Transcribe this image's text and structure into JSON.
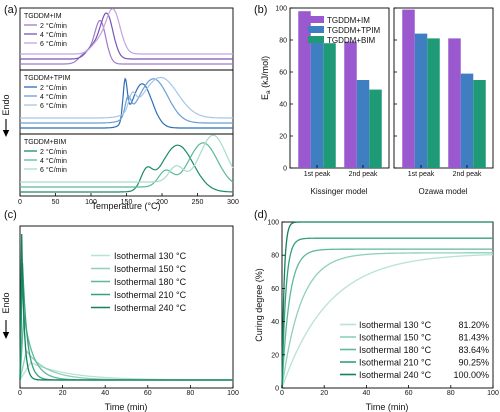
{
  "figure": {
    "panels": [
      {
        "label": "(a)"
      },
      {
        "label": "(b)"
      },
      {
        "label": "(c)"
      },
      {
        "label": "(d)"
      }
    ]
  },
  "chart_data": [
    {
      "id": "a",
      "type": "line",
      "xlabel": "Temperature (°C)",
      "ylabel": "Endo",
      "xlim": [
        0,
        300
      ],
      "xticks": [
        "0",
        "50",
        "100",
        "150",
        "200",
        "250",
        "300"
      ],
      "groups": [
        {
          "title": "TGDDM+IM",
          "series": [
            {
              "name": "2  °C/min",
              "color": "#a07bc8",
              "peaks": [
                [
                  93,
                  0.22,
                  9
                ],
                [
                  113,
                  0.85,
                  8
                ]
              ]
            },
            {
              "name": "4  °C/min",
              "color": "#7c52b5",
              "peaks": [
                [
                  102,
                  0.22,
                  9
                ],
                [
                  122,
                  0.9,
                  9
                ]
              ]
            },
            {
              "name": "6  °C/min",
              "color": "#c2a3e0",
              "peaks": [
                [
                  110,
                  0.22,
                  10
                ],
                [
                  131,
                  0.88,
                  10
                ]
              ]
            }
          ]
        },
        {
          "title": "TGDDM+TPIM",
          "series": [
            {
              "name": "2  °C/min",
              "color": "#2f6db5",
              "peaks": [
                [
                  148,
                  0.75,
                  3
                ],
                [
                  172,
                  0.85,
                  14
                ]
              ]
            },
            {
              "name": "4  °C/min",
              "color": "#6a9fd4",
              "peaks": [
                [
                  152,
                  0.35,
                  4
                ],
                [
                  188,
                  0.85,
                  20
                ]
              ]
            },
            {
              "name": "6  °C/min",
              "color": "#a7c6e6",
              "peaks": [
                [
                  158,
                  0.3,
                  5
                ],
                [
                  198,
                  0.78,
                  24
                ]
              ]
            }
          ]
        },
        {
          "title": "TGDDM+BIM",
          "series": [
            {
              "name": "2  °C/min",
              "color": "#1a8a6a",
              "peaks": [
                [
                  178,
                  0.35,
                  8
                ],
                [
                  222,
                  0.9,
                  22
                ]
              ]
            },
            {
              "name": "4  °C/min",
              "color": "#5cb89a",
              "peaks": [
                [
                  205,
                  0.3,
                  10
                ],
                [
                  258,
                  0.85,
                  20
                ]
              ]
            },
            {
              "name": "6  °C/min",
              "color": "#a9dcc8",
              "peaks": [
                [
                  220,
                  0.3,
                  10
                ],
                [
                  272,
                  0.9,
                  18
                ]
              ]
            }
          ]
        }
      ]
    },
    {
      "id": "b",
      "type": "bar",
      "ylabel": "E",
      "ylabel_sub": "a",
      "ylabel_unit": " (kJ/mol)",
      "ylim": [
        0,
        100
      ],
      "yticks": [
        "0",
        "20",
        "40",
        "60",
        "80",
        "100"
      ],
      "series": [
        {
          "name": "TGDDM+IM",
          "color": "#9b59d0"
        },
        {
          "name": "TGDDM+TPIM",
          "color": "#3f7fc1"
        },
        {
          "name": "TGDDM+BIM",
          "color": "#1f9a77"
        }
      ],
      "subplots": [
        {
          "xlabel": "Kissinger model",
          "categories": [
            "1st peak",
            "2nd peak"
          ],
          "values": [
            [
              98,
              81,
              78
            ],
            [
              79,
              55,
              49
            ]
          ]
        },
        {
          "xlabel": "Ozawa model",
          "categories": [
            "1st peak",
            "2nd peak"
          ],
          "values": [
            [
              99,
              84,
              81
            ],
            [
              81,
              59,
              55
            ]
          ]
        }
      ]
    },
    {
      "id": "c",
      "type": "line",
      "xlabel": "Time (min)",
      "ylabel": "Endo",
      "xlim": [
        0,
        100
      ],
      "xticks": [
        "0",
        "20",
        "40",
        "60",
        "80",
        "100"
      ],
      "series": [
        {
          "name": "Isothermal 130 °C",
          "color": "#b8e3d2",
          "peak_t": 5,
          "height": 0.12,
          "decay": 18
        },
        {
          "name": "Isothermal 150 °C",
          "color": "#8fd0b8",
          "peak_t": 3,
          "height": 0.2,
          "decay": 10
        },
        {
          "name": "Isothermal 180 °C",
          "color": "#5fb897",
          "peak_t": 1.8,
          "height": 0.45,
          "decay": 4.5
        },
        {
          "name": "Isothermal 210 °C",
          "color": "#34a07c",
          "peak_t": 1.2,
          "height": 0.8,
          "decay": 2.2
        },
        {
          "name": "Isothermal 240 °C",
          "color": "#13805e",
          "peak_t": 0.8,
          "height": 1.0,
          "decay": 1.2
        }
      ]
    },
    {
      "id": "d",
      "type": "line",
      "xlabel": "Time (min)",
      "ylabel": "Curing degree (%)",
      "xlim": [
        0,
        100
      ],
      "ylim": [
        0,
        100
      ],
      "xticks": [
        "0",
        "20",
        "40",
        "60",
        "80",
        "100"
      ],
      "yticks": [
        "0",
        "20",
        "40",
        "60",
        "80",
        "100"
      ],
      "series": [
        {
          "name": "Isothermal 130 °C",
          "value_label": "81.20%",
          "final": 81.2,
          "color": "#b8e3d2",
          "rate": 22
        },
        {
          "name": "Isothermal 150 °C",
          "value_label": "81.43%",
          "final": 81.43,
          "color": "#8fd0b8",
          "rate": 9
        },
        {
          "name": "Isothermal 180 °C",
          "value_label": "83.64%",
          "final": 83.64,
          "color": "#5fb897",
          "rate": 3.5
        },
        {
          "name": "Isothermal 210 °C",
          "value_label": "90.25%",
          "final": 90.25,
          "color": "#34a07c",
          "rate": 1.8
        },
        {
          "name": "Isothermal 240 °C",
          "value_label": "100.00%",
          "final": 100.0,
          "color": "#13805e",
          "rate": 1.0
        }
      ]
    }
  ]
}
